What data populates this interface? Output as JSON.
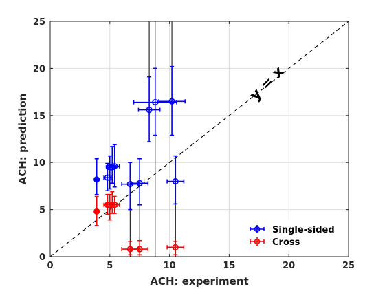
{
  "chart_data": {
    "type": "scatter",
    "xlabel": "ACH: experiment",
    "ylabel": "ACH: prediction",
    "xlim": [
      0,
      25
    ],
    "ylim": [
      0,
      25
    ],
    "xticks": [
      0,
      5,
      10,
      15,
      20,
      25
    ],
    "yticks": [
      0,
      5,
      10,
      15,
      20,
      25
    ],
    "grid": true,
    "legend_position": "bottom-right",
    "reference_line": {
      "label": "y = x",
      "style": "dashed",
      "color": "#000000"
    },
    "series": [
      {
        "name": "Single-sided",
        "color": "#0000ff",
        "points": [
          {
            "x": 3.9,
            "y": 8.2,
            "xerr": 0.0,
            "ylow": 6.6,
            "yhigh": 10.4,
            "filled": true
          },
          {
            "x": 4.8,
            "y": 8.4,
            "xerr": 0.3,
            "ylow": 7.0,
            "yhigh": 9.9
          },
          {
            "x": 5.0,
            "y": 9.5,
            "xerr": 0.3,
            "ylow": 7.2,
            "yhigh": 10.7
          },
          {
            "x": 5.2,
            "y": 9.5,
            "xerr": 0.3,
            "ylow": 7.8,
            "yhigh": 11.7
          },
          {
            "x": 5.4,
            "y": 9.6,
            "xerr": 0.4,
            "ylow": 7.4,
            "yhigh": 11.9
          },
          {
            "x": 6.7,
            "y": 7.7,
            "xerr": 0.7,
            "ylow": 5.0,
            "yhigh": 10.0
          },
          {
            "x": 7.5,
            "y": 7.8,
            "xerr": 0.7,
            "ylow": 5.5,
            "yhigh": 10.4
          },
          {
            "x": 10.5,
            "y": 8.0,
            "xerr": 0.7,
            "ylow": 5.6,
            "yhigh": 10.7
          },
          {
            "x": 8.3,
            "y": 15.6,
            "xerr": 0.9,
            "ylow": 12.2,
            "yhigh": 19.1
          },
          {
            "x": 8.8,
            "y": 16.4,
            "xerr": 1.8,
            "ylow": 12.9,
            "yhigh": 20.0
          },
          {
            "x": 10.2,
            "y": 16.5,
            "xerr": 1.1,
            "ylow": 12.9,
            "yhigh": 20.2
          }
        ],
        "outer_error_lines": [
          {
            "x": 8.3,
            "ylow": 15.6,
            "yhigh": 25.0
          },
          {
            "x": 8.8,
            "ylow": 0.0,
            "yhigh": 25.0
          },
          {
            "x": 10.2,
            "ylow": 12.9,
            "yhigh": 25.0
          },
          {
            "x": 6.7,
            "ylow": 0.0,
            "yhigh": 5.0
          },
          {
            "x": 7.5,
            "ylow": 0.0,
            "yhigh": 5.5
          },
          {
            "x": 10.5,
            "ylow": 0.0,
            "yhigh": 5.6
          }
        ]
      },
      {
        "name": "Cross",
        "color": "#ff0000",
        "points": [
          {
            "x": 3.9,
            "y": 4.8,
            "xerr": 0.0,
            "ylow": 3.3,
            "yhigh": 6.4,
            "filled": true
          },
          {
            "x": 4.8,
            "y": 5.5,
            "xerr": 0.3,
            "ylow": 4.5,
            "yhigh": 6.6
          },
          {
            "x": 5.0,
            "y": 5.5,
            "xerr": 0.3,
            "ylow": 3.9,
            "yhigh": 6.6
          },
          {
            "x": 5.2,
            "y": 5.5,
            "xerr": 0.4,
            "ylow": 4.6,
            "yhigh": 6.9
          },
          {
            "x": 5.4,
            "y": 5.5,
            "xerr": 0.4,
            "ylow": 4.6,
            "yhigh": 6.4
          },
          {
            "x": 6.7,
            "y": 0.8,
            "xerr": 0.7,
            "ylow": 0.2,
            "yhigh": 1.6
          },
          {
            "x": 7.5,
            "y": 0.8,
            "xerr": 0.7,
            "ylow": 0.2,
            "yhigh": 1.7
          },
          {
            "x": 10.5,
            "y": 1.0,
            "xerr": 0.7,
            "ylow": 0.2,
            "yhigh": 1.6
          }
        ]
      }
    ]
  }
}
